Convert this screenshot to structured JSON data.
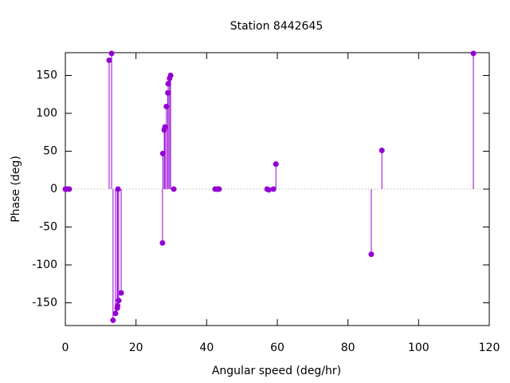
{
  "chart_data": {
    "type": "stem",
    "title": "Station 8442645",
    "xlabel": "Angular speed (deg/hr)",
    "ylabel": "Phase (deg)",
    "x": [
      0,
      0.5,
      1.1,
      12.4,
      13.1,
      13.5,
      14.2,
      14.7,
      14.8,
      14.9,
      15.1,
      15.8,
      27.5,
      27.6,
      28.0,
      28.2,
      28.6,
      29.0,
      29.1,
      29.5,
      29.8,
      30.7,
      42.4,
      43.0,
      43.5,
      57.1,
      57.6,
      58.9,
      59.6,
      86.6,
      89.6,
      115.5
    ],
    "values": [
      0,
      0,
      0,
      170,
      179,
      -173,
      -164,
      -157,
      -154,
      0,
      -147,
      -137,
      -71,
      47,
      78,
      82,
      109,
      127,
      139,
      146,
      150,
      0,
      0,
      0,
      0,
      0,
      -1,
      0,
      33,
      -86,
      51,
      179
    ],
    "color": "#9400d3",
    "xlim": [
      0,
      120
    ],
    "xticks": [
      0,
      20,
      40,
      60,
      80,
      100,
      120
    ],
    "ylim": [
      -180,
      180
    ],
    "yticks": [
      -150,
      -100,
      -50,
      0,
      50,
      100,
      150
    ],
    "zero_line": true
  }
}
